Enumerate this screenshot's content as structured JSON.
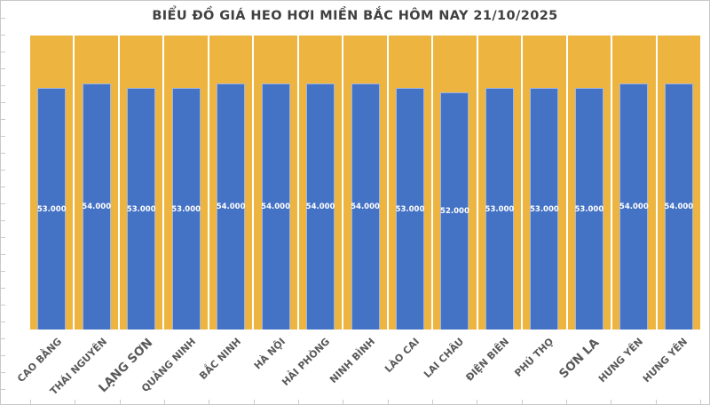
{
  "chart_data": {
    "type": "bar",
    "title": "BIỂU ĐỒ GIÁ HEO HƠI MIỀN BẮC HÔM NAY 21/10/2025",
    "categories": [
      "CAO BẰNG",
      "THÁI NGUYÊN",
      "LẠNG SƠN",
      "QUẢNG NINH",
      "BẮC NINH",
      "HÀ NỘI",
      "HẢI PHÒNG",
      "NINH BÌNH",
      "LÀO CAI",
      "LAI CHÂU",
      "ĐIỆN BIÊN",
      "PHÚ THỌ",
      "SƠN LA",
      "HƯNG YÊN",
      "HƯNG YÊN"
    ],
    "values": [
      53000,
      54000,
      53000,
      53000,
      54000,
      54000,
      54000,
      54000,
      53000,
      52000,
      53000,
      53000,
      53000,
      54000,
      54000
    ],
    "value_labels": [
      "53.000",
      "54.000",
      "53.000",
      "53.000",
      "54.000",
      "54.000",
      "54.000",
      "54.000",
      "53.000",
      "52.000",
      "53.000",
      "53.000",
      "53.000",
      "54.000",
      "54.000"
    ],
    "xlabel": "",
    "ylabel": "",
    "ylim": [
      0,
      64500
    ],
    "y_axis_labels_visible": false,
    "grid": false,
    "legend": false,
    "emphasized_label_indices": [
      2,
      12
    ],
    "x_label_rotation_deg": 45,
    "colors": {
      "bar": "#4472C4",
      "bar_border": "#9FB5E0",
      "background_column": "#EDB53F",
      "value_label": "#FFFFFF",
      "title": "#404040",
      "axis_label": "#595959",
      "chart_border": "#C9C9C9",
      "background": "#FFFFFF"
    }
  }
}
